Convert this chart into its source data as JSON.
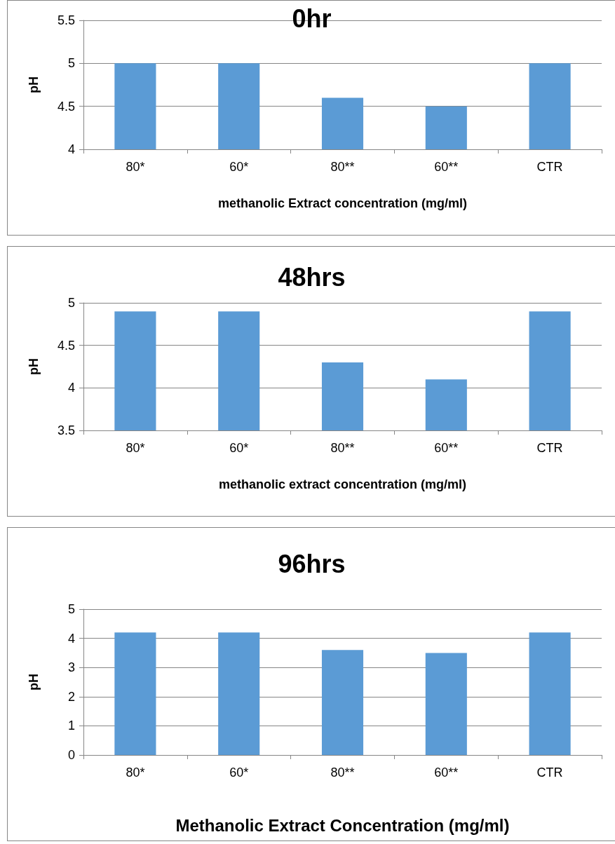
{
  "chart_data": [
    {
      "type": "bar",
      "title": "0hr",
      "xlabel": "methanolic Extract concentration (mg/ml)",
      "ylabel": "pH",
      "categories": [
        "80*",
        "60*",
        "80**",
        "60**",
        "CTR"
      ],
      "values": [
        5,
        5,
        4.6,
        4.5,
        5
      ],
      "color": "#5b9bd5",
      "ylim": [
        4,
        5.5
      ],
      "yticks": [
        4,
        4.5,
        5,
        5.5
      ],
      "grid": "y"
    },
    {
      "type": "bar",
      "title": "48hrs",
      "xlabel": "methanolic extract concentration (mg/ml)",
      "ylabel": "pH",
      "categories": [
        "80*",
        "60*",
        "80**",
        "60**",
        "CTR"
      ],
      "values": [
        4.9,
        4.9,
        4.3,
        4.1,
        4.9
      ],
      "color": "#5b9bd5",
      "ylim": [
        3.5,
        5
      ],
      "yticks": [
        3.5,
        4,
        4.5,
        5
      ],
      "grid": "y"
    },
    {
      "type": "bar",
      "title": "96hrs",
      "xlabel": "Methanolic Extract Concentration (mg/ml)",
      "ylabel": "pH",
      "categories": [
        "80*",
        "60*",
        "80**",
        "60**",
        "CTR"
      ],
      "values": [
        4.2,
        4.2,
        3.6,
        3.5,
        4.2
      ],
      "color": "#5b9bd5",
      "ylim": [
        0,
        5
      ],
      "yticks": [
        0,
        1,
        2,
        3,
        4,
        5
      ],
      "grid": "y"
    }
  ]
}
